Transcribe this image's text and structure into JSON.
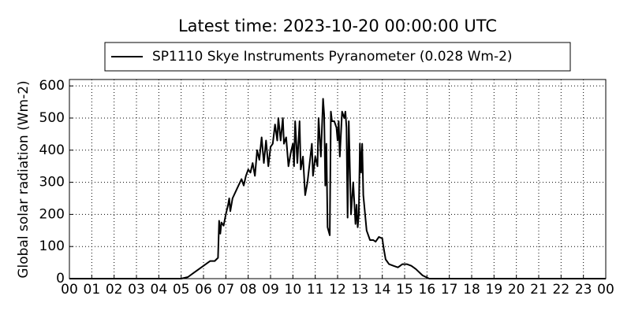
{
  "chart_data": {
    "type": "line",
    "title": "Latest time: 2023-10-20 00:00:00 UTC",
    "ylabel": "Global solar radiation (Wm-2)",
    "legend": "upper center",
    "grid": true,
    "xlim": [
      0,
      24
    ],
    "ylim": [
      0,
      620
    ],
    "yticks": [
      0,
      100,
      200,
      300,
      400,
      500,
      600
    ],
    "xticks": [
      {
        "value": 0,
        "label": "00"
      },
      {
        "value": 1,
        "label": "01"
      },
      {
        "value": 2,
        "label": "02"
      },
      {
        "value": 3,
        "label": "03"
      },
      {
        "value": 4,
        "label": "04"
      },
      {
        "value": 5,
        "label": "05"
      },
      {
        "value": 6,
        "label": "06"
      },
      {
        "value": 7,
        "label": "07"
      },
      {
        "value": 8,
        "label": "08"
      },
      {
        "value": 9,
        "label": "09"
      },
      {
        "value": 10,
        "label": "10"
      },
      {
        "value": 11,
        "label": "11"
      },
      {
        "value": 12,
        "label": "12"
      },
      {
        "value": 13,
        "label": "13"
      },
      {
        "value": 14,
        "label": "14"
      },
      {
        "value": 15,
        "label": "15"
      },
      {
        "value": 16,
        "label": "16"
      },
      {
        "value": 17,
        "label": "17"
      },
      {
        "value": 18,
        "label": "18"
      },
      {
        "value": 19,
        "label": "19"
      },
      {
        "value": 20,
        "label": "20"
      },
      {
        "value": 21,
        "label": "21"
      },
      {
        "value": 22,
        "label": "22"
      },
      {
        "value": 23,
        "label": "23"
      },
      {
        "value": 24,
        "label": "00"
      }
    ],
    "x": [
      0,
      5.0,
      5.3,
      5.6,
      6.0,
      6.3,
      6.5,
      6.65,
      6.7,
      6.75,
      6.8,
      6.9,
      7.0,
      7.1,
      7.15,
      7.2,
      7.3,
      7.5,
      7.7,
      7.8,
      7.9,
      8.0,
      8.1,
      8.2,
      8.3,
      8.4,
      8.5,
      8.6,
      8.7,
      8.8,
      8.9,
      9.0,
      9.1,
      9.2,
      9.3,
      9.35,
      9.45,
      9.55,
      9.6,
      9.7,
      9.8,
      9.9,
      10.0,
      10.05,
      10.1,
      10.2,
      10.3,
      10.35,
      10.45,
      10.55,
      10.65,
      10.75,
      10.85,
      10.9,
      11.0,
      11.1,
      11.15,
      11.25,
      11.35,
      11.4,
      11.45,
      11.5,
      11.55,
      11.65,
      11.7,
      11.75,
      11.85,
      11.95,
      12.0,
      12.05,
      12.1,
      12.2,
      12.3,
      12.35,
      12.4,
      12.45,
      12.5,
      12.55,
      12.6,
      12.7,
      12.8,
      12.85,
      12.9,
      12.95,
      13.0,
      13.05,
      13.1,
      13.15,
      13.3,
      13.45,
      13.6,
      13.7,
      13.85,
      14.0,
      14.05,
      14.15,
      14.3,
      14.5,
      14.7,
      14.9,
      15.1,
      15.3,
      15.5,
      15.8,
      16.1,
      24
    ],
    "series": [
      {
        "name": "SP1110 Skye Instruments Pyranometer (0.028 Wm-2)",
        "color": "#000000",
        "values": [
          0,
          0,
          5,
          20,
          40,
          55,
          55,
          65,
          180,
          140,
          175,
          165,
          200,
          230,
          250,
          210,
          250,
          280,
          310,
          290,
          320,
          340,
          330,
          360,
          320,
          400,
          370,
          440,
          360,
          430,
          350,
          410,
          420,
          480,
          430,
          500,
          430,
          500,
          420,
          440,
          350,
          390,
          420,
          350,
          490,
          360,
          490,
          340,
          380,
          260,
          300,
          360,
          420,
          320,
          380,
          350,
          500,
          380,
          560,
          510,
          290,
          420,
          160,
          135,
          520,
          490,
          490,
          470,
          430,
          490,
          380,
          520,
          500,
          520,
          470,
          190,
          490,
          340,
          200,
          300,
          170,
          230,
          160,
          200,
          420,
          330,
          420,
          260,
          150,
          120,
          120,
          115,
          130,
          125,
          100,
          60,
          45,
          40,
          35,
          45,
          45,
          40,
          30,
          10,
          0,
          0
        ]
      }
    ]
  }
}
